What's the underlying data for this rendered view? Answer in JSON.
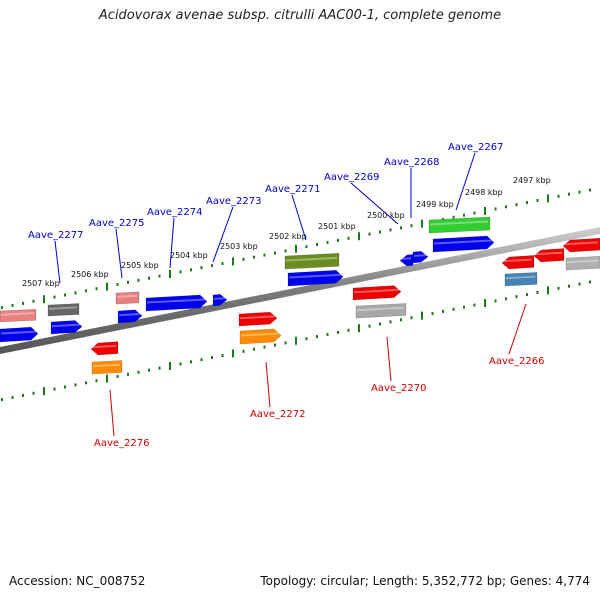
{
  "title": "Acidovorax avenae subsp. citrulli AAC00-1, complete genome",
  "footer": {
    "accession": "Accession: NC_008752",
    "info": "Topology: circular; Length: 5,352,772 bp; Genes: 4,774"
  },
  "colors": {
    "forward_label": "#0000cc",
    "reverse_label": "#cc0000",
    "tick": "#1a7a1a",
    "backbone": "#808080"
  },
  "scale_labels": [
    "2507 kbp",
    "2506 kbp",
    "2505 kbp",
    "2504 kbp",
    "2503 kbp",
    "2502 kbp",
    "2501 kbp",
    "2500 kbp",
    "2499 kbp",
    "2498 kbp",
    "2497 kbp"
  ],
  "gene_labels_upper": [
    "Aave_2277",
    "Aave_2275",
    "Aave_2274",
    "Aave_2273",
    "Aave_2271",
    "Aave_2269",
    "Aave_2268",
    "Aave_2267"
  ],
  "gene_labels_lower": [
    "Aave_2276",
    "Aave_2272",
    "Aave_2270",
    "Aave_2266"
  ]
}
